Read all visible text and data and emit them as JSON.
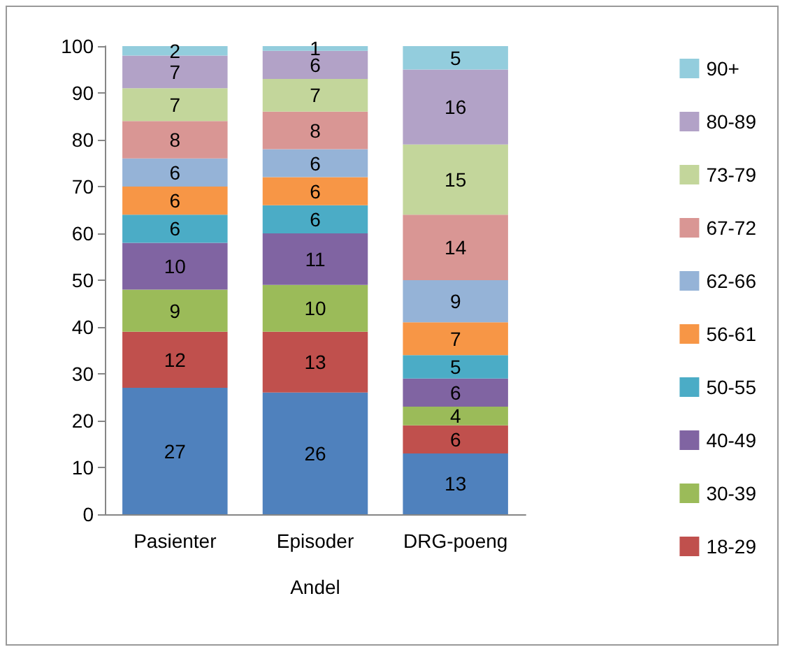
{
  "chart_data": {
    "type": "bar",
    "stacked": true,
    "data_labels": true,
    "legend": "right",
    "xlabel": "Andel",
    "categories": [
      "Pasienter",
      "Episoder",
      "DRG-poeng"
    ],
    "ylim": [
      0,
      100
    ],
    "yticks": [
      0,
      10,
      20,
      30,
      40,
      50,
      60,
      70,
      80,
      90,
      100
    ],
    "series": [
      {
        "color": "#4f81bd",
        "values": [
          27,
          26,
          13
        ]
      },
      {
        "name": "18-29",
        "color": "#c0504d",
        "values": [
          12,
          13,
          6
        ]
      },
      {
        "name": "30-39",
        "color": "#9bbb59",
        "values": [
          9,
          10,
          4
        ]
      },
      {
        "name": "40-49",
        "color": "#8064a2",
        "values": [
          10,
          11,
          6
        ]
      },
      {
        "name": "50-55",
        "color": "#4bacc6",
        "values": [
          6,
          6,
          5
        ]
      },
      {
        "name": "56-61",
        "color": "#f79646",
        "values": [
          6,
          6,
          7
        ]
      },
      {
        "name": "62-66",
        "color": "#95b3d7",
        "values": [
          6,
          6,
          9
        ]
      },
      {
        "name": "67-72",
        "color": "#d99694",
        "values": [
          8,
          8,
          14
        ]
      },
      {
        "name": "73-79",
        "color": "#c3d69b",
        "values": [
          7,
          7,
          15
        ]
      },
      {
        "name": "80-89",
        "color": "#b2a2c7",
        "values": [
          7,
          6,
          16
        ]
      },
      {
        "name": "90+",
        "color": "#93cddd",
        "values": [
          2,
          1,
          5
        ]
      }
    ]
  }
}
